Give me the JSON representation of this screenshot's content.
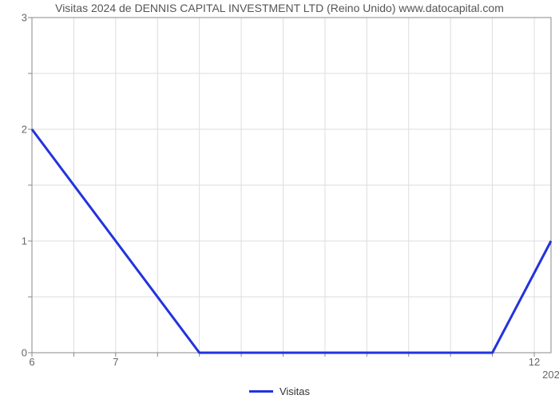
{
  "chart": {
    "type": "line",
    "title": "Visitas 2024 de DENNIS CAPITAL INVESTMENT LTD (Reino Unido) www.datocapital.com",
    "title_fontsize": 14,
    "title_color": "#555555",
    "background_color": "#ffffff",
    "plot_border_color": "#888888",
    "plot_border_width": 1,
    "grid_color": "#dddddd",
    "grid_width": 1,
    "x": {
      "min": 6,
      "max": 12.2,
      "tick_start": 6,
      "tick_step": 0.5,
      "labeled_ticks": [
        6,
        7,
        12
      ],
      "secondary_label": {
        "value": 12.2,
        "text": "202"
      }
    },
    "y": {
      "min": 0,
      "max": 3,
      "tick_step": 0.5,
      "labeled_ticks": [
        0,
        1,
        2,
        3
      ]
    },
    "tick_len": 5,
    "tick_label_color": "#666666",
    "tick_label_fontsize": 13,
    "series": [
      {
        "name": "Visitas",
        "color": "#2233dd",
        "line_width": 3,
        "points": [
          {
            "x": 6.0,
            "y": 2.0
          },
          {
            "x": 8.0,
            "y": 0.0
          },
          {
            "x": 11.5,
            "y": 0.0
          },
          {
            "x": 12.2,
            "y": 1.0
          }
        ]
      }
    ],
    "legend": {
      "label": "Visitas"
    }
  }
}
